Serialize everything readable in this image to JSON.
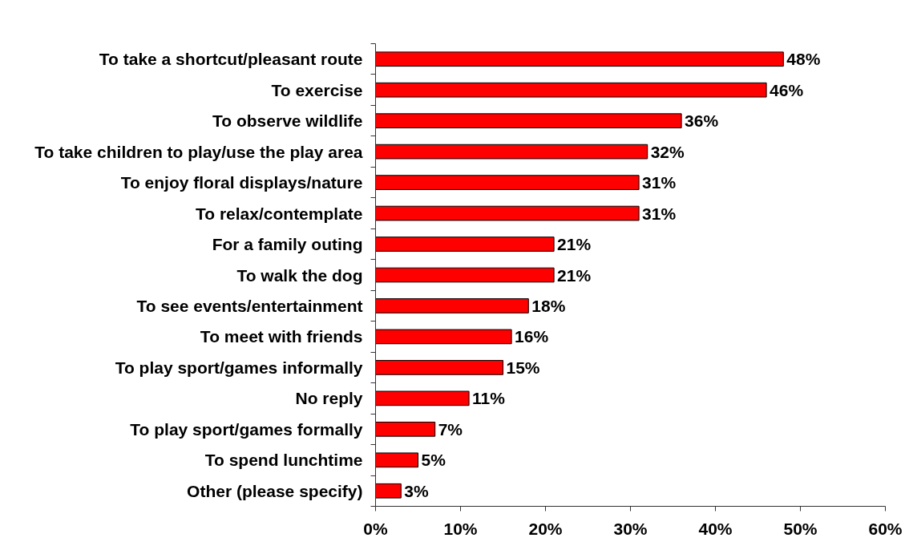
{
  "chart_data": {
    "type": "bar",
    "orientation": "horizontal",
    "categories": [
      "To take a shortcut/pleasant route",
      "To exercise",
      "To observe wildlife",
      "To take children to play/use the play area",
      "To enjoy floral displays/nature",
      "To relax/contemplate",
      "For a family outing",
      "To walk the dog",
      "To see events/entertainment",
      "To meet with friends",
      "To play sport/games informally",
      "No reply",
      "To play sport/games formally",
      "To spend lunchtime",
      "Other (please specify)"
    ],
    "values": [
      48,
      46,
      36,
      32,
      31,
      31,
      21,
      21,
      18,
      16,
      15,
      11,
      7,
      5,
      3
    ],
    "value_labels": [
      "48%",
      "46%",
      "36%",
      "32%",
      "31%",
      "31%",
      "21%",
      "21%",
      "18%",
      "16%",
      "15%",
      "11%",
      "7%",
      "5%",
      "3%"
    ],
    "color": "#ff0000",
    "xlim": [
      0,
      60
    ],
    "xticks": [
      {
        "value": 0,
        "label": "0%"
      },
      {
        "value": 10,
        "label": "10%"
      },
      {
        "value": 20,
        "label": "20%"
      },
      {
        "value": 30,
        "label": "30%"
      },
      {
        "value": 40,
        "label": "40%"
      },
      {
        "value": 50,
        "label": "50%"
      },
      {
        "value": 60,
        "label": "60%"
      }
    ]
  }
}
